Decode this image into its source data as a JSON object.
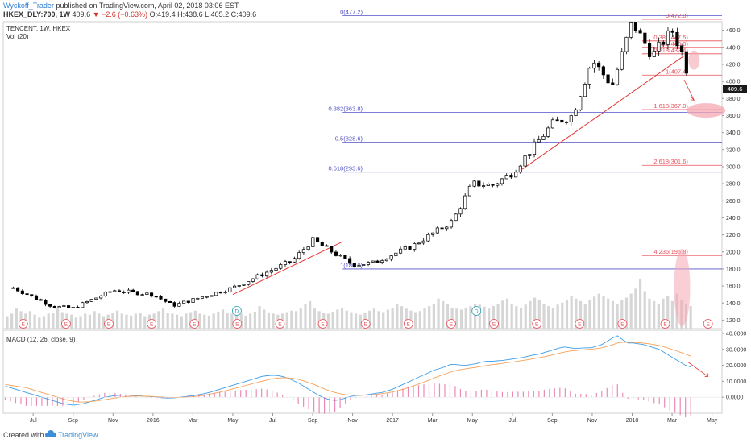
{
  "header": {
    "author": "Wyckoff_Trader",
    "published_text": "published on TradingView.com, April 02, 2018 03:06 EST",
    "symbol": "HKEX_DLY:700, 1W",
    "last": "409.6",
    "change": "▼ −2.6 (−0.63%)",
    "ohlc": "O:419.4 H:438.6 L:405.2 C:409.6"
  },
  "legend": {
    "main": "TENCENT, 1W, HKEX",
    "vol": "Vol (20)",
    "macd": "MACD (12, 26, close, 9)"
  },
  "footer": {
    "created_with": "Created with",
    "brand": "TradingView"
  },
  "price_badge": "409.6",
  "chart_data": [
    {
      "type": "candlestick",
      "title": "TENCENT, 1W, HKEX",
      "x_tick_labels": [
        "Jul",
        "Sep",
        "Nov",
        "2016",
        "Mar",
        "May",
        "Jul",
        "Sep",
        "Nov",
        "2017",
        "Mar",
        "May",
        "Jul",
        "Sep",
        "Nov",
        "2018",
        "Mar",
        "May"
      ],
      "y_tick_labels": [
        "120.0",
        "140.0",
        "160.0",
        "180.0",
        "200.0",
        "220.0",
        "240.0",
        "260.0",
        "280.0",
        "300.0",
        "320.0",
        "340.0",
        "360.0",
        "380.0",
        "400.0",
        "420.0",
        "440.0",
        "460.0"
      ],
      "ylim": [
        110,
        470
      ],
      "last_price": 409.6,
      "series": [
        {
          "name": "price",
          "key_points": [
            {
              "x": "2015-06",
              "y": 158
            },
            {
              "x": "2015-08",
              "y": 136
            },
            {
              "x": "2015-09",
              "y": 134
            },
            {
              "x": "2015-11",
              "y": 155
            },
            {
              "x": "2016-01",
              "y": 150
            },
            {
              "x": "2016-02",
              "y": 137
            },
            {
              "x": "2016-05",
              "y": 158
            },
            {
              "x": "2016-08",
              "y": 190
            },
            {
              "x": "2016-09",
              "y": 214
            },
            {
              "x": "2016-11",
              "y": 185
            },
            {
              "x": "2016-12",
              "y": 187
            },
            {
              "x": "2017-02",
              "y": 207
            },
            {
              "x": "2017-04",
              "y": 236
            },
            {
              "x": "2017-05",
              "y": 280
            },
            {
              "x": "2017-06",
              "y": 278
            },
            {
              "x": "2017-07",
              "y": 293
            },
            {
              "x": "2017-09",
              "y": 350
            },
            {
              "x": "2017-10",
              "y": 360
            },
            {
              "x": "2017-11",
              "y": 425
            },
            {
              "x": "2017-12",
              "y": 395
            },
            {
              "x": "2018-01",
              "y": 470
            },
            {
              "x": "2018-02",
              "y": 430
            },
            {
              "x": "2018-03",
              "y": 460
            },
            {
              "x": "2018-03-29",
              "y": 409.6
            }
          ]
        }
      ],
      "fib_retracement": [
        {
          "label": "0(477.2)",
          "value": 477.2
        },
        {
          "label": "0.382(363.8)",
          "value": 363.8
        },
        {
          "label": "0.5(328.6)",
          "value": 328.6
        },
        {
          "label": "0.618(293.6)",
          "value": 293.6
        },
        {
          "label": "1(180.0)",
          "value": 180.0
        }
      ],
      "fib_extension": [
        {
          "label": "0(472.8)",
          "value": 472.8
        },
        {
          "label": "0.382(447.5)",
          "value": 447.5
        },
        {
          "label": "0.5(440.0)",
          "value": 440.0
        },
        {
          "label": "0.618(432.4)",
          "value": 432.4
        },
        {
          "label": "1(407.4)",
          "value": 407.4
        },
        {
          "label": "1.618(367.0)",
          "value": 367.0
        },
        {
          "label": "2.618(301.6)",
          "value": 301.6
        },
        {
          "label": "4.236(195.8)",
          "value": 195.8
        }
      ],
      "earnings_markers": [
        "E",
        "E",
        "E",
        "E",
        "E",
        "E",
        "E",
        "E",
        "E",
        "E",
        "E",
        "E",
        "E",
        "E",
        "E",
        "E",
        "E"
      ],
      "dividend_markers": [
        "D",
        "D"
      ],
      "colors": {
        "up": "#ffffff",
        "down": "#000000",
        "fib_retracement": "#5252c8",
        "fib_extension": "#e8505b",
        "trendline": "#e53935"
      }
    },
    {
      "type": "bar",
      "title": "Vol (20)",
      "description": "relative weekly volume",
      "values": [
        0.25,
        0.3,
        0.4,
        0.35,
        0.3,
        0.35,
        0.28,
        0.22,
        0.25,
        0.3,
        0.32,
        0.4,
        0.33,
        0.3,
        0.28,
        0.22,
        0.25,
        0.3,
        0.28,
        0.35,
        0.3,
        0.25,
        0.28,
        0.32,
        0.36,
        0.3,
        0.28,
        0.26,
        0.3,
        0.32,
        0.25,
        0.28,
        0.3,
        0.35,
        0.4,
        0.32,
        0.3,
        0.28,
        0.25,
        0.3,
        0.33,
        0.36,
        0.3,
        0.28,
        0.26,
        0.3,
        0.34,
        0.38,
        0.32,
        0.3,
        0.28,
        0.3,
        0.26,
        0.3,
        0.34,
        0.45,
        0.38,
        0.32,
        0.3,
        0.28,
        0.3,
        0.33,
        0.36,
        0.35,
        0.4,
        0.5,
        0.55,
        0.4,
        0.35,
        0.32,
        0.3,
        0.34,
        0.38,
        0.42,
        0.36,
        0.33,
        0.3,
        0.28,
        0.32,
        0.36,
        0.4,
        0.35,
        0.33,
        0.38,
        0.42,
        0.5,
        0.45,
        0.4,
        0.36,
        0.33,
        0.35,
        0.4,
        0.45,
        0.5,
        0.6,
        0.55,
        0.5,
        0.42,
        0.4,
        0.38,
        0.42,
        0.45,
        0.5,
        0.48,
        0.44,
        0.4,
        0.45,
        0.5,
        0.56,
        0.6,
        0.5,
        0.45,
        0.42,
        0.48,
        0.55,
        0.62,
        0.58,
        0.5,
        0.45,
        0.42,
        0.48,
        0.52,
        0.58,
        0.65,
        0.6,
        0.55,
        0.5,
        0.58,
        0.64,
        0.7,
        0.65,
        0.6,
        0.55,
        0.5,
        0.58,
        0.62,
        0.7,
        0.8,
        1.0,
        0.75,
        0.6,
        0.55,
        0.5,
        0.6,
        0.65,
        0.55,
        0.7,
        0.58,
        0.5,
        0.45
      ]
    },
    {
      "type": "line",
      "title": "MACD (12, 26, close, 9)",
      "y_tick_labels": [
        "0.0000",
        "10.0000",
        "20.0000",
        "30.0000",
        "40.0000"
      ],
      "ylim": [
        -10,
        42
      ],
      "series": [
        {
          "name": "MACD",
          "color": "#3c9de8",
          "values": [
            7,
            6,
            5,
            4,
            3,
            2,
            1,
            0,
            -1,
            -2,
            -3,
            -4,
            -4.5,
            -5,
            -4.5,
            -4,
            -3,
            -2,
            -1,
            0,
            0.5,
            1,
            1.2,
            1.4,
            1.2,
            1,
            0.8,
            0.5,
            0.3,
            0,
            -0.3,
            -0.5,
            -0.4,
            -0.2,
            0.2,
            0.6,
            1,
            1.6,
            2.2,
            3,
            4,
            5,
            6,
            7,
            8,
            9,
            10,
            11,
            12,
            13,
            13.5,
            13.8,
            13.6,
            13,
            12,
            10.5,
            9,
            7,
            5,
            3,
            1,
            -0.5,
            -1.5,
            -2,
            -1.5,
            -0.5,
            0.5,
            1,
            1.2,
            1.5,
            2,
            2.5,
            3,
            4,
            5,
            6.5,
            8,
            9.5,
            11,
            12.5,
            14,
            15.5,
            17,
            18,
            19,
            20.5,
            20.5,
            20.2,
            20,
            20.5,
            21,
            22,
            22.5,
            22.5,
            22.8,
            23,
            23.5,
            24,
            24.5,
            25,
            25.8,
            26.5,
            27,
            28,
            29,
            30,
            31,
            31.5,
            31,
            30.5,
            30.8,
            31,
            31,
            32,
            33,
            35,
            37,
            38.5,
            36,
            34,
            34,
            33.5,
            33,
            32,
            31,
            30,
            28,
            26,
            24,
            22,
            20,
            19
          ]
        },
        {
          "name": "Signal",
          "color": "#f5a15b",
          "values": [
            8,
            7.5,
            7,
            6.5,
            6,
            5,
            4,
            3,
            2,
            1,
            0,
            -1,
            -1.8,
            -2.5,
            -3,
            -3,
            -2.8,
            -2.5,
            -2,
            -1.5,
            -1,
            -0.5,
            0,
            0.4,
            0.6,
            0.7,
            0.7,
            0.6,
            0.5,
            0.3,
            0.1,
            -0.1,
            -0.2,
            -0.2,
            -0.1,
            0.1,
            0.4,
            0.8,
            1.2,
            1.8,
            2.5,
            3.2,
            4,
            4.8,
            5.6,
            6.5,
            7.4,
            8.3,
            9.2,
            10,
            10.8,
            11.5,
            12,
            12.2,
            12.2,
            11.8,
            11.2,
            10.3,
            9.2,
            8,
            6.6,
            5.2,
            4,
            3,
            2.2,
            1.6,
            1.3,
            1.2,
            1.2,
            1.3,
            1.5,
            1.8,
            2.2,
            2.7,
            3.3,
            4.1,
            5,
            6,
            7.1,
            8.3,
            9.5,
            10.8,
            12.1,
            13.3,
            14.5,
            15.7,
            16.6,
            17.3,
            17.8,
            18.3,
            18.8,
            19.4,
            19.9,
            20.4,
            20.8,
            21.2,
            21.7,
            22.1,
            22.6,
            23.1,
            23.6,
            24.2,
            24.8,
            25.4,
            26.1,
            26.9,
            27.7,
            28.4,
            29,
            29.3,
            29.6,
            29.9,
            30.1,
            30.5,
            31,
            31.8,
            32.8,
            34,
            34.5,
            34.5,
            34.4,
            34.2,
            33.9,
            33.5,
            33,
            32.4,
            31.5,
            30.5,
            29.4,
            28.2,
            27,
            25.8
          ]
        }
      ]
    }
  ]
}
